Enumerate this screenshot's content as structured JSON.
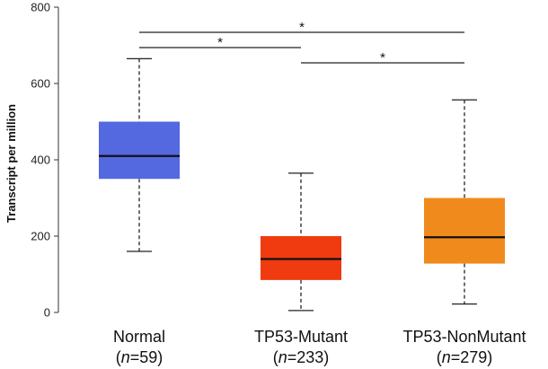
{
  "chart_data": {
    "type": "boxplot",
    "title": "",
    "xlabel": "",
    "ylabel": "Transcript per million",
    "ylim": [
      0,
      800
    ],
    "yticks": [
      "0",
      "200",
      "400",
      "600",
      "800"
    ],
    "categories": [
      {
        "label": "Normal",
        "n_prefix": "(",
        "n_italic": "n",
        "n_suffix": "=59)"
      },
      {
        "label": "TP53-Mutant",
        "n_prefix": "(",
        "n_italic": "n",
        "n_suffix": "=233)"
      },
      {
        "label": "TP53-NonMutant",
        "n_prefix": "(",
        "n_italic": "n",
        "n_suffix": "=279)"
      }
    ],
    "boxes": [
      {
        "name": "Normal",
        "whisker_low": 160,
        "q1": 350,
        "median": 410,
        "q3": 500,
        "whisker_high": 665,
        "color": "#5468E0"
      },
      {
        "name": "TP53-Mutant",
        "whisker_low": 5,
        "q1": 85,
        "median": 140,
        "q3": 200,
        "whisker_high": 365,
        "color": "#F03A10"
      },
      {
        "name": "TP53-NonMutant",
        "whisker_low": 22,
        "q1": 128,
        "median": 197,
        "q3": 300,
        "whisker_high": 557,
        "color": "#F08A1C"
      }
    ],
    "significance": [
      {
        "from": 0,
        "to": 2,
        "level": 1,
        "label": "*"
      },
      {
        "from": 0,
        "to": 1,
        "level": 2,
        "label": "*"
      },
      {
        "from": 1,
        "to": 2,
        "level": 3,
        "label": "*"
      }
    ]
  }
}
